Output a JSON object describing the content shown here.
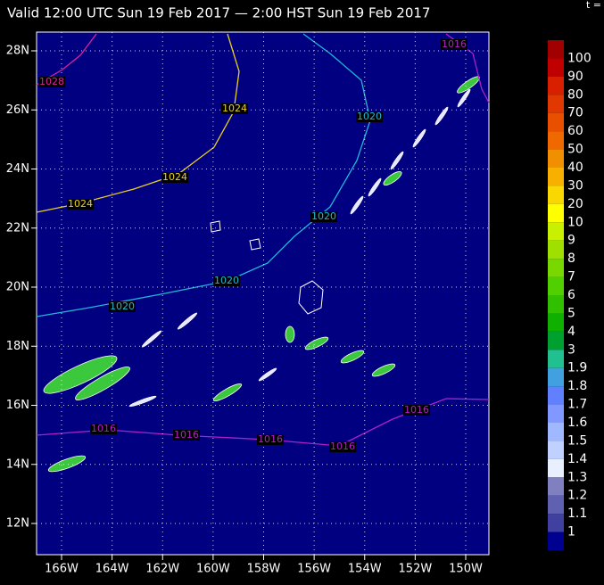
{
  "header": {
    "title": "Valid 12:00 UTC Sun 19 Feb 2017 — 2:00 HST Sun 19 Feb 2017",
    "corner": "t ="
  },
  "map": {
    "lon_labels": [
      "166W",
      "164W",
      "162W",
      "160W",
      "158W",
      "156W",
      "154W",
      "152W",
      "150W"
    ],
    "lat_labels": [
      "28N",
      "26N",
      "24N",
      "22N",
      "20N",
      "18N",
      "16N",
      "14N",
      "12N"
    ],
    "contour_labels": [
      "1028",
      "1024",
      "1024",
      "1024",
      "1020",
      "1020",
      "1020",
      "1020",
      "1016",
      "1016",
      "1016",
      "1016",
      "1016",
      "1016"
    ]
  },
  "colorbar": {
    "labels": [
      "100",
      "90",
      "80",
      "70",
      "60",
      "50",
      "40",
      "30",
      "20",
      "10",
      "9",
      "8",
      "7",
      "6",
      "5",
      "4",
      "3",
      "1.9",
      "1.8",
      "1.7",
      "1.6",
      "1.5",
      "1.4",
      "1.3",
      "1.2",
      "1.1",
      "1"
    ]
  }
}
